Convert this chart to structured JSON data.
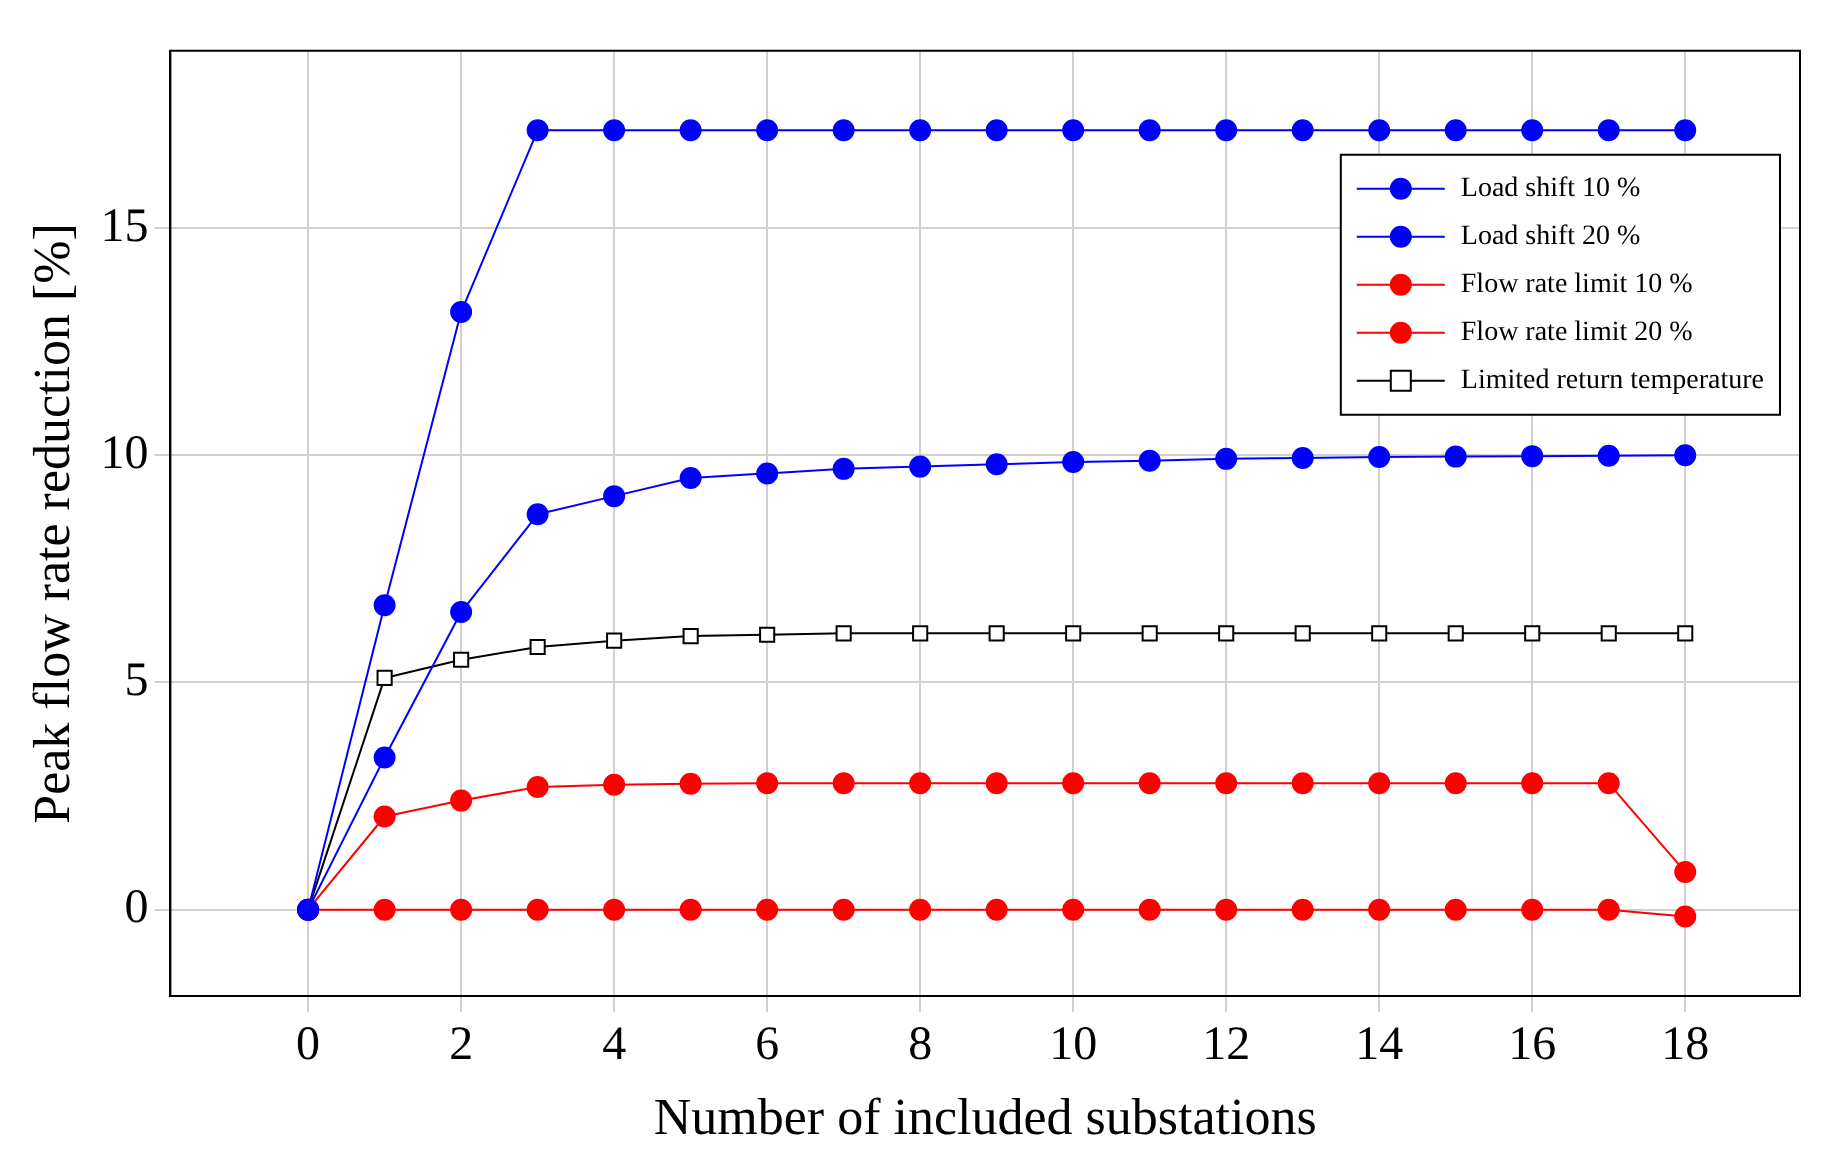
{
  "chart_data": {
    "type": "line",
    "xlabel": "Number of included substations",
    "ylabel": "Peak flow rate reduction [%]",
    "x": [
      0,
      1,
      2,
      3,
      4,
      5,
      6,
      7,
      8,
      9,
      10,
      11,
      12,
      13,
      14,
      15,
      16,
      17,
      18
    ],
    "xlim": [
      -1.8,
      19.5
    ],
    "xticks": [
      0,
      2,
      4,
      6,
      8,
      10,
      12,
      14,
      16,
      18
    ],
    "ylim": [
      -1.9,
      18.9
    ],
    "yticks": [
      0,
      5,
      10,
      15
    ],
    "grid": true,
    "legend": "top right",
    "series": [
      {
        "name": "Load shift 10 %",
        "color": "#0000ff",
        "marker": "circle",
        "values": [
          0,
          3.35,
          6.55,
          8.7,
          9.1,
          9.5,
          9.6,
          9.7,
          9.75,
          9.8,
          9.85,
          9.88,
          9.92,
          9.94,
          9.96,
          9.97,
          9.98,
          9.99,
          10.0
        ]
      },
      {
        "name": "Load shift 20 %",
        "color": "#0000ff",
        "marker": "circle",
        "values": [
          0,
          6.7,
          13.15,
          17.15,
          17.15,
          17.15,
          17.15,
          17.15,
          17.15,
          17.15,
          17.15,
          17.15,
          17.15,
          17.15,
          17.15,
          17.15,
          17.15,
          17.15,
          17.15
        ]
      },
      {
        "name": "Flow rate limit 10 %",
        "color": "#ff0000",
        "marker": "circle",
        "values": [
          0,
          0,
          0,
          0,
          0,
          0,
          0,
          0,
          0,
          0,
          0,
          0,
          0,
          0,
          0,
          0,
          0,
          0,
          -0.15
        ]
      },
      {
        "name": "Flow rate limit 20 %",
        "color": "#ff0000",
        "marker": "circle",
        "values": [
          0,
          2.05,
          2.4,
          2.7,
          2.75,
          2.77,
          2.78,
          2.78,
          2.78,
          2.78,
          2.78,
          2.78,
          2.78,
          2.78,
          2.78,
          2.78,
          2.78,
          2.78,
          0.83
        ]
      },
      {
        "name": "Limited return temperature",
        "color": "#000000",
        "marker": "square",
        "values": [
          0,
          5.1,
          5.5,
          5.78,
          5.92,
          6.02,
          6.05,
          6.08,
          6.08,
          6.08,
          6.08,
          6.08,
          6.08,
          6.08,
          6.08,
          6.08,
          6.08,
          6.08,
          6.08
        ]
      }
    ]
  }
}
